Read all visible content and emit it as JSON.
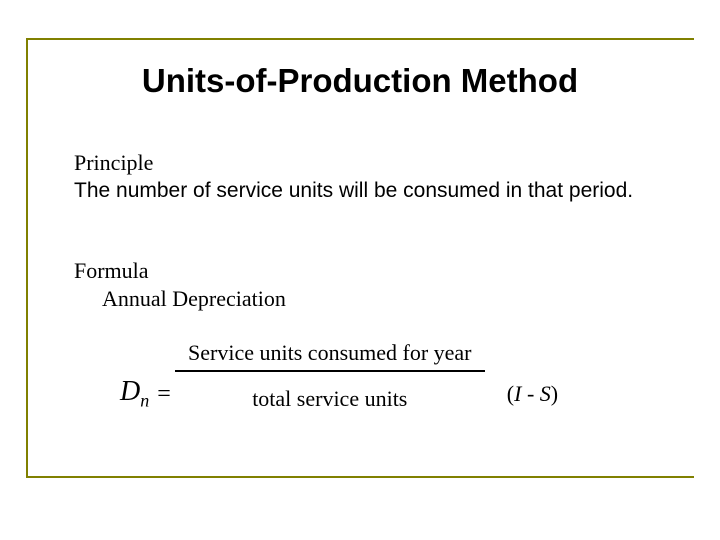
{
  "title": "Units-of-Production Method",
  "principle": {
    "heading": "Principle",
    "text": "The number of service units will be consumed in   that period."
  },
  "formula": {
    "heading": "Formula",
    "sub": "Annual Depreciation",
    "dn_D": "D",
    "dn_n": "n",
    "equals": "=",
    "numerator": "Service units consumed for year",
    "denominator": "total service units",
    "mult_open": "(",
    "mult_I": "I",
    "mult_minus": " - ",
    "mult_S": "S",
    "mult_close": ")"
  },
  "colors": {
    "frame": "#808000",
    "text": "#000000",
    "background": "#ffffff"
  }
}
